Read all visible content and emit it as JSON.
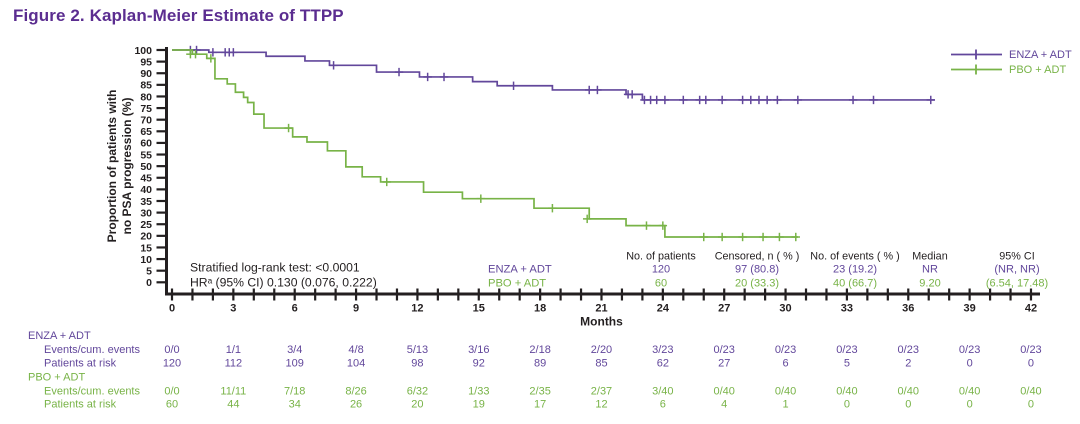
{
  "figure": {
    "title": "Figure 2. Kaplan-Meier Estimate of TTPP"
  },
  "colors": {
    "title": "#5b2d90",
    "enza": "#62479b",
    "pbo": "#78b347",
    "axis": "#231f20"
  },
  "chart_data": {
    "type": "line",
    "subtype": "kaplan_meier_step",
    "title": "Figure 2. Kaplan-Meier Estimate of TTPP",
    "xlabel": "Months",
    "ylabel": "Proportion of patients with no PSA progression (%)",
    "ylabel_lines": [
      "Proportion of patients with",
      "no PSA progression (%)"
    ],
    "xlim": [
      0,
      42
    ],
    "ylim": [
      0,
      100
    ],
    "x_major_ticks": [
      0,
      3,
      6,
      9,
      12,
      15,
      18,
      21,
      24,
      27,
      30,
      33,
      36,
      39,
      42
    ],
    "x_minor_step": 1,
    "y_ticks": [
      0,
      5,
      10,
      15,
      20,
      25,
      30,
      35,
      40,
      45,
      50,
      55,
      60,
      65,
      70,
      75,
      80,
      85,
      90,
      95,
      100
    ],
    "grid": false,
    "legend": {
      "position": "top-right",
      "entries": [
        "ENZA + ADT",
        "PBO + ADT"
      ]
    },
    "annotations": [
      "Stratified log-rank test: <0.0001",
      "HRᵃ (95% CI) 0.130 (0.076, 0.222)"
    ],
    "series": [
      {
        "name": "ENZA + ADT",
        "color_key": "enza",
        "end_month": 37.3,
        "steps": [
          [
            0,
            100
          ],
          [
            1.8,
            99.0
          ],
          [
            4.6,
            97.3
          ],
          [
            6.5,
            95.3
          ],
          [
            7.7,
            93.4
          ],
          [
            10.0,
            90.5
          ],
          [
            12.1,
            88.4
          ],
          [
            14.7,
            86.4
          ],
          [
            15.9,
            84.6
          ],
          [
            18.6,
            82.8
          ],
          [
            22.2,
            80.9
          ],
          [
            23.0,
            78.5
          ]
        ],
        "censors": [
          [
            0.9,
            100
          ],
          [
            1.2,
            100
          ],
          [
            2.0,
            99.0
          ],
          [
            2.6,
            99.0
          ],
          [
            2.8,
            99.0
          ],
          [
            3.0,
            99.0
          ],
          [
            7.9,
            93.4
          ],
          [
            11.1,
            90.5
          ],
          [
            12.5,
            88.4
          ],
          [
            13.3,
            88.4
          ],
          [
            16.7,
            84.6
          ],
          [
            20.4,
            82.8
          ],
          [
            20.8,
            82.8
          ],
          [
            22.3,
            80.9
          ],
          [
            22.5,
            80.9
          ],
          [
            23.1,
            78.5
          ],
          [
            23.4,
            78.5
          ],
          [
            23.7,
            78.5
          ],
          [
            24.1,
            78.5
          ],
          [
            25.0,
            78.5
          ],
          [
            25.8,
            78.5
          ],
          [
            26.1,
            78.5
          ],
          [
            26.9,
            78.5
          ],
          [
            27.9,
            78.5
          ],
          [
            28.3,
            78.5
          ],
          [
            28.7,
            78.5
          ],
          [
            29.1,
            78.5
          ],
          [
            29.6,
            78.5
          ],
          [
            30.6,
            78.5
          ],
          [
            33.3,
            78.5
          ],
          [
            34.3,
            78.5
          ],
          [
            37.1,
            78.5
          ]
        ]
      },
      {
        "name": "PBO + ADT",
        "color_key": "pbo",
        "end_month": 30.6,
        "steps": [
          [
            0,
            100
          ],
          [
            1.0,
            98.2
          ],
          [
            1.7,
            96.4
          ],
          [
            2.1,
            87.6
          ],
          [
            2.7,
            85.4
          ],
          [
            3.1,
            81.8
          ],
          [
            3.5,
            79.6
          ],
          [
            3.7,
            77.4
          ],
          [
            4.0,
            72.4
          ],
          [
            4.5,
            66.4
          ],
          [
            5.9,
            62.6
          ],
          [
            6.6,
            60.4
          ],
          [
            7.6,
            56.6
          ],
          [
            8.5,
            49.7
          ],
          [
            9.3,
            45.4
          ],
          [
            10.2,
            43.2
          ],
          [
            12.3,
            38.8
          ],
          [
            14.2,
            36.0
          ],
          [
            17.7,
            31.9
          ],
          [
            20.4,
            27.3
          ],
          [
            22.2,
            24.4
          ],
          [
            24.1,
            19.5
          ]
        ],
        "censors": [
          [
            0.9,
            98.2
          ],
          [
            1.15,
            98.2
          ],
          [
            1.9,
            96.4
          ],
          [
            5.7,
            66.4
          ],
          [
            10.5,
            43.2
          ],
          [
            15.1,
            36.0
          ],
          [
            18.6,
            31.9
          ],
          [
            20.3,
            27.3
          ],
          [
            23.2,
            24.4
          ],
          [
            24.0,
            24.4
          ],
          [
            26.0,
            19.5
          ],
          [
            26.9,
            19.5
          ],
          [
            27.9,
            19.5
          ],
          [
            28.9,
            19.5
          ],
          [
            29.7,
            19.5
          ],
          [
            30.5,
            19.5
          ]
        ]
      }
    ],
    "summary_table": {
      "headers": [
        "No. of patients",
        "Censored, n ( % )",
        "No. of events ( % )",
        "Median",
        "95% CI"
      ],
      "rows": [
        {
          "group": "ENZA + ADT",
          "color_key": "enza",
          "values": [
            "120",
            "97 (80.8)",
            "23 (19.2)",
            "NR",
            "(NR, NR)"
          ]
        },
        {
          "group": "PBO + ADT",
          "color_key": "pbo",
          "values": [
            "60",
            "20 (33.3)",
            "40 (66.7)",
            "9.20",
            "(6.54, 17.48)"
          ]
        }
      ]
    },
    "risk_table": {
      "months": [
        0,
        3,
        6,
        9,
        12,
        15,
        18,
        21,
        24,
        27,
        30,
        33,
        36,
        39,
        42
      ],
      "groups": [
        {
          "name": "ENZA + ADT",
          "color_key": "enza",
          "rows": [
            {
              "label": "Events/cum. events",
              "values": [
                "0/0",
                "1/1",
                "3/4",
                "4/8",
                "5/13",
                "3/16",
                "2/18",
                "2/20",
                "3/23",
                "0/23",
                "0/23",
                "0/23",
                "0/23",
                "0/23",
                "0/23"
              ]
            },
            {
              "label": "Patients at risk",
              "values": [
                "120",
                "112",
                "109",
                "104",
                "98",
                "92",
                "89",
                "85",
                "62",
                "27",
                "6",
                "5",
                "2",
                "0",
                "0"
              ]
            }
          ]
        },
        {
          "name": "PBO + ADT",
          "color_key": "pbo",
          "rows": [
            {
              "label": "Events/cum. events",
              "values": [
                "0/0",
                "11/11",
                "7/18",
                "8/26",
                "6/32",
                "1/33",
                "2/35",
                "2/37",
                "3/40",
                "0/40",
                "0/40",
                "0/40",
                "0/40",
                "0/40",
                "0/40"
              ]
            },
            {
              "label": "Patients at risk",
              "values": [
                "60",
                "44",
                "34",
                "26",
                "20",
                "19",
                "17",
                "12",
                "6",
                "4",
                "1",
                "0",
                "0",
                "0",
                "0"
              ]
            }
          ]
        }
      ]
    }
  }
}
